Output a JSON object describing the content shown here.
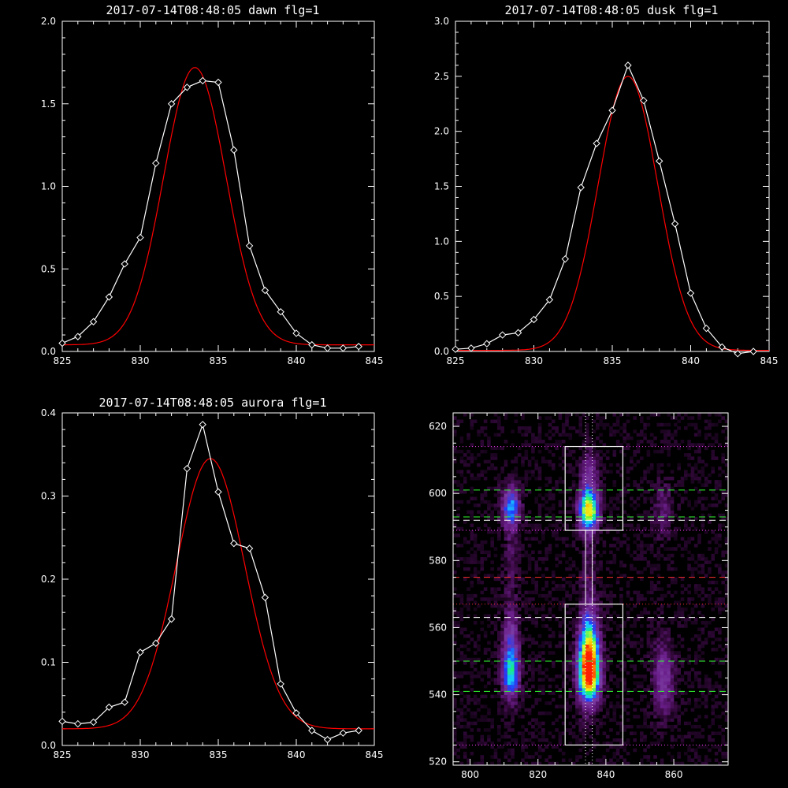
{
  "chart_data": [
    {
      "type": "line",
      "title": "2017-07-14T08:48:05 dawn flg=1",
      "xlim": [
        825,
        845
      ],
      "ylim": [
        0,
        2.0
      ],
      "xticks": [
        "825",
        "830",
        "835",
        "840",
        "845"
      ],
      "yticks": [
        "0.0",
        "0.5",
        "1.0",
        "1.5",
        "2.0"
      ],
      "series": [
        {
          "color": "#ffffff",
          "marker": "diamond",
          "x": [
            825,
            826,
            827,
            828,
            829,
            830,
            831,
            832,
            833,
            834,
            835,
            836,
            837,
            838,
            839,
            840,
            841,
            842,
            843,
            844
          ],
          "y": [
            0.05,
            0.09,
            0.18,
            0.33,
            0.53,
            0.69,
            1.14,
            1.5,
            1.6,
            1.64,
            1.63,
            1.22,
            0.64,
            0.37,
            0.24,
            0.11,
            0.04,
            0.02,
            0.02,
            0.03
          ]
        },
        {
          "color": "#ff0000",
          "fit": "gaussian",
          "peak_x": 833.5,
          "peak_y": 1.72,
          "baseline": 0.04,
          "sigma": 2.0
        }
      ]
    },
    {
      "type": "line",
      "title": "2017-07-14T08:48:05 dusk flg=1",
      "xlim": [
        825,
        845
      ],
      "ylim": [
        0,
        3.0
      ],
      "xticks": [
        "825",
        "830",
        "835",
        "840",
        "845"
      ],
      "yticks": [
        "0.0",
        "0.5",
        "1.0",
        "1.5",
        "2.0",
        "2.5",
        "3.0"
      ],
      "series": [
        {
          "color": "#ffffff",
          "marker": "diamond",
          "x": [
            825,
            826,
            827,
            828,
            829,
            830,
            831,
            832,
            833,
            834,
            835,
            836,
            837,
            838,
            839,
            840,
            841,
            842,
            843,
            844
          ],
          "y": [
            0.02,
            0.03,
            0.07,
            0.15,
            0.17,
            0.29,
            0.47,
            0.84,
            1.49,
            1.89,
            2.19,
            2.6,
            2.28,
            1.73,
            1.16,
            0.53,
            0.21,
            0.04,
            -0.02,
            0.0
          ]
        },
        {
          "color": "#ff0000",
          "fit": "gaussian",
          "peak_x": 836.0,
          "peak_y": 2.5,
          "baseline": 0.01,
          "sigma": 1.9
        }
      ]
    },
    {
      "type": "line",
      "title": "2017-07-14T08:48:05 aurora flg=1",
      "xlim": [
        825,
        845
      ],
      "ylim": [
        0,
        0.4
      ],
      "xticks": [
        "825",
        "830",
        "835",
        "840",
        "845"
      ],
      "yticks": [
        "0.0",
        "0.1",
        "0.2",
        "0.3",
        "0.4"
      ],
      "series": [
        {
          "color": "#ffffff",
          "marker": "diamond",
          "x": [
            825,
            826,
            827,
            828,
            829,
            830,
            831,
            832,
            833,
            834,
            835,
            836,
            837,
            838,
            839,
            840,
            841,
            842,
            843,
            844
          ],
          "y": [
            0.029,
            0.026,
            0.028,
            0.046,
            0.052,
            0.112,
            0.123,
            0.152,
            0.333,
            0.386,
            0.305,
            0.243,
            0.237,
            0.178,
            0.074,
            0.039,
            0.018,
            0.007,
            0.015,
            0.018
          ]
        },
        {
          "color": "#ff0000",
          "fit": "gaussian",
          "peak_x": 834.5,
          "peak_y": 0.345,
          "baseline": 0.02,
          "sigma": 2.2
        }
      ]
    },
    {
      "type": "heatmap",
      "title": "",
      "xlim": [
        795,
        876
      ],
      "ylim": [
        519,
        624
      ],
      "xticks": [
        "800",
        "820",
        "840",
        "860"
      ],
      "yticks": [
        "520",
        "540",
        "560",
        "580",
        "600",
        "620"
      ],
      "colormap": [
        "#000000",
        "#3c0a46",
        "#6a1e8a",
        "#7a3aa0",
        "#1e3cff",
        "#16c8ff",
        "#19f07a",
        "#e8ff1e",
        "#ffc000",
        "#ff1e00"
      ],
      "sources": [
        {
          "x": 812,
          "y": 546,
          "amp": 0.55,
          "sx": 1.8,
          "sy": 5
        },
        {
          "x": 812,
          "y": 557,
          "amp": 0.3,
          "sx": 1.6,
          "sy": 6
        },
        {
          "x": 812,
          "y": 596,
          "amp": 0.5,
          "sx": 1.8,
          "sy": 4
        },
        {
          "x": 812,
          "y": 580,
          "amp": 0.12,
          "sx": 1.6,
          "sy": 10
        },
        {
          "x": 835,
          "y": 546,
          "amp": 0.95,
          "sx": 2.2,
          "sy": 6
        },
        {
          "x": 835,
          "y": 556,
          "amp": 0.6,
          "sx": 2.0,
          "sy": 7
        },
        {
          "x": 835,
          "y": 595,
          "amp": 0.85,
          "sx": 2.0,
          "sy": 4
        },
        {
          "x": 835,
          "y": 606,
          "amp": 0.25,
          "sx": 1.8,
          "sy": 5
        },
        {
          "x": 835,
          "y": 578,
          "amp": 0.12,
          "sx": 1.6,
          "sy": 8
        },
        {
          "x": 857,
          "y": 545,
          "amp": 0.28,
          "sx": 2.2,
          "sy": 8
        },
        {
          "x": 857,
          "y": 595,
          "amp": 0.16,
          "sx": 2.0,
          "sy": 6
        }
      ],
      "boxes": [
        {
          "x0": 828,
          "x1": 845,
          "y0": 525,
          "y1": 567
        },
        {
          "x0": 828,
          "x1": 845,
          "y0": 589,
          "y1": 614
        }
      ],
      "vlines": [
        {
          "x": 834,
          "color": "#ffffff",
          "style": "dotted"
        },
        {
          "x": 836,
          "color": "#ffffff",
          "style": "dotted"
        },
        {
          "x": 834,
          "color": "#ffffff",
          "style": "solid",
          "y0": 567,
          "y1": 589
        },
        {
          "x": 836,
          "color": "#ffffff",
          "style": "solid",
          "y0": 567,
          "y1": 589
        }
      ],
      "hlines": [
        {
          "y": 614,
          "color": "#ff40ff",
          "style": "dotted"
        },
        {
          "y": 601,
          "color": "#30ff30",
          "style": "dashed"
        },
        {
          "y": 593,
          "color": "#30ff30",
          "style": "dashed"
        },
        {
          "y": 592,
          "color": "#ffffff",
          "style": "dashed"
        },
        {
          "y": 589,
          "color": "#ff40ff",
          "style": "dotted"
        },
        {
          "y": 575,
          "color": "#ff3030",
          "style": "dashed"
        },
        {
          "y": 567,
          "color": "#ff3030",
          "style": "dotted"
        },
        {
          "y": 563,
          "color": "#ffffff",
          "style": "dashed"
        },
        {
          "y": 550,
          "color": "#30ff30",
          "style": "dashed"
        },
        {
          "y": 541,
          "color": "#30ff30",
          "style": "dashed"
        },
        {
          "y": 525,
          "color": "#ff40ff",
          "style": "dotted"
        }
      ]
    }
  ]
}
